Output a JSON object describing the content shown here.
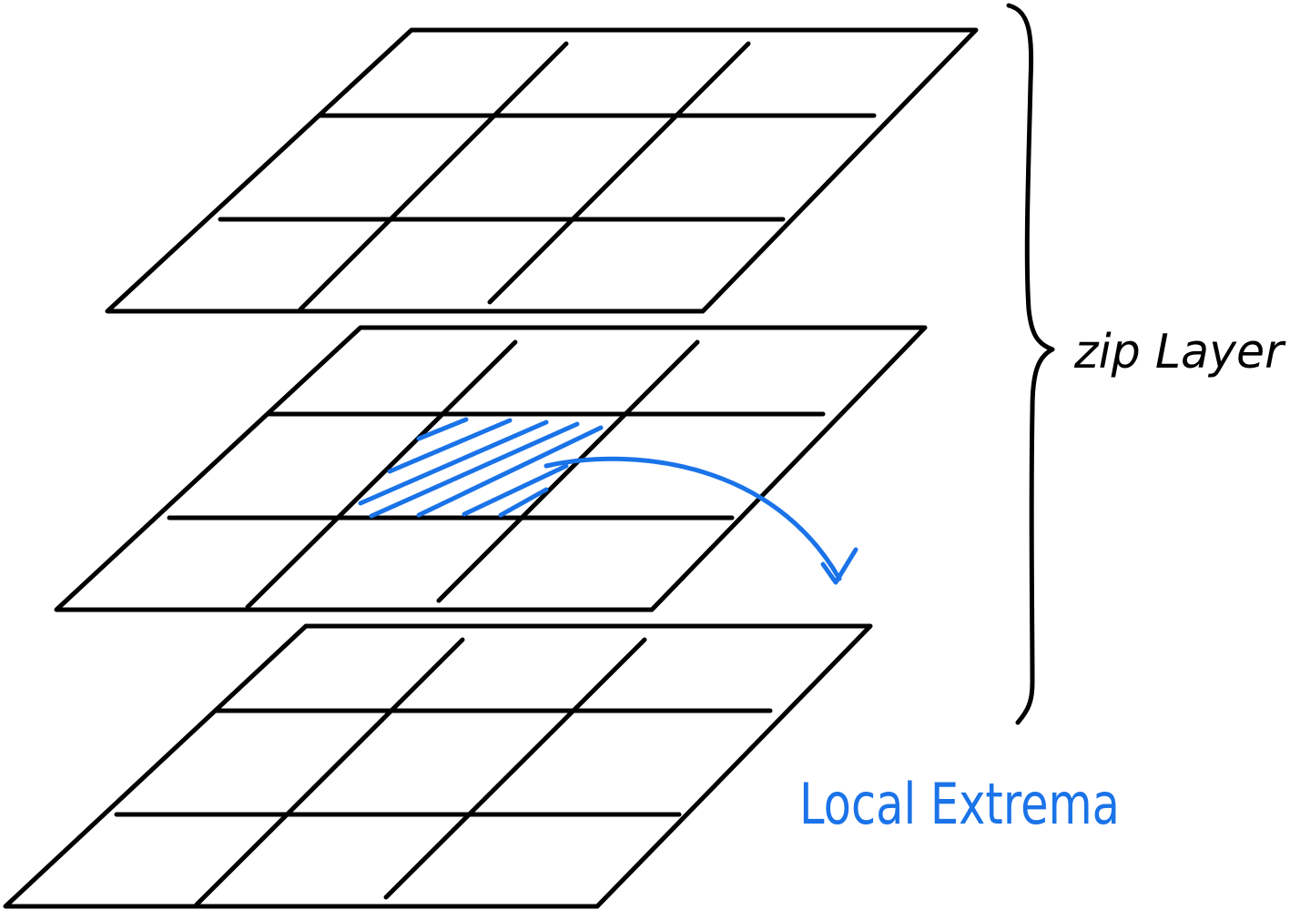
{
  "labels": {
    "layer_group": "zip Layer",
    "extrema": "Local Extrema"
  },
  "layers": [
    {
      "name": "top-layer"
    },
    {
      "name": "middle-layer",
      "highlighted_cell": "center"
    },
    {
      "name": "bottom-layer"
    }
  ],
  "colors": {
    "ink": "#000000",
    "highlight": "#1a73e8"
  }
}
